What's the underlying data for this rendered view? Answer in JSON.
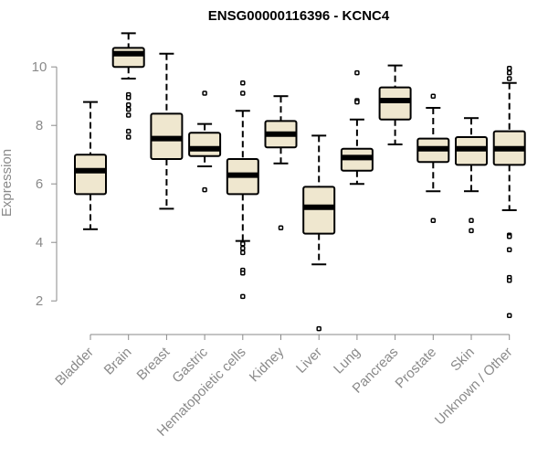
{
  "chart_data": {
    "type": "boxplot",
    "title": "ENSG00000116396 - KCNC4",
    "ylabel": "Expression",
    "xlabel": "",
    "ylim": [
      0.85,
      11.35
    ],
    "yticks": [
      2,
      4,
      6,
      8,
      10
    ],
    "colors": {
      "box_fill": "#efe7cf",
      "stroke": "#000000",
      "axis_text": "#8a8a8a"
    },
    "categories": [
      "Bladder",
      "Brain",
      "Breast",
      "Gastric",
      "Hematopoietic cells",
      "Kidney",
      "Liver",
      "Lung",
      "Pancreas",
      "Prostate",
      "Skin",
      "Unknown / Other"
    ],
    "series": [
      {
        "whisker_low": 4.45,
        "q1": 5.65,
        "median": 6.45,
        "q3": 7.0,
        "whisker_high": 8.8,
        "outliers": []
      },
      {
        "whisker_low": 9.6,
        "q1": 10.0,
        "median": 10.45,
        "q3": 10.65,
        "whisker_high": 11.15,
        "outliers": [
          9.05,
          8.95,
          8.7,
          8.55,
          8.35,
          7.8,
          7.6
        ]
      },
      {
        "whisker_low": 5.15,
        "q1": 6.85,
        "median": 7.55,
        "q3": 8.4,
        "whisker_high": 10.45,
        "outliers": []
      },
      {
        "whisker_low": 6.6,
        "q1": 6.95,
        "median": 7.2,
        "q3": 7.75,
        "whisker_high": 8.05,
        "outliers": [
          9.1,
          5.8
        ]
      },
      {
        "whisker_low": 4.05,
        "q1": 5.65,
        "median": 6.3,
        "q3": 6.85,
        "whisker_high": 8.5,
        "outliers": [
          9.45,
          9.1,
          3.95,
          3.8,
          3.65,
          3.05,
          2.95,
          2.15
        ]
      },
      {
        "whisker_low": 6.7,
        "q1": 7.25,
        "median": 7.7,
        "q3": 8.15,
        "whisker_high": 9.0,
        "outliers": [
          4.5
        ]
      },
      {
        "whisker_low": 3.25,
        "q1": 4.3,
        "median": 5.2,
        "q3": 5.9,
        "whisker_high": 7.65,
        "outliers": [
          1.05
        ]
      },
      {
        "whisker_low": 6.0,
        "q1": 6.45,
        "median": 6.9,
        "q3": 7.2,
        "whisker_high": 8.2,
        "outliers": [
          9.8,
          8.85,
          8.8
        ]
      },
      {
        "whisker_low": 7.35,
        "q1": 8.2,
        "median": 8.85,
        "q3": 9.3,
        "whisker_high": 10.05,
        "outliers": []
      },
      {
        "whisker_low": 5.75,
        "q1": 6.75,
        "median": 7.2,
        "q3": 7.55,
        "whisker_high": 8.6,
        "outliers": [
          9.0,
          4.75
        ]
      },
      {
        "whisker_low": 5.75,
        "q1": 6.65,
        "median": 7.2,
        "q3": 7.6,
        "whisker_high": 8.25,
        "outliers": [
          4.75,
          4.4
        ]
      },
      {
        "whisker_low": 5.1,
        "q1": 6.65,
        "median": 7.2,
        "q3": 7.8,
        "whisker_high": 9.45,
        "outliers": [
          9.95,
          9.8,
          9.6,
          4.25,
          4.2,
          3.75,
          2.8,
          2.7,
          1.5
        ]
      }
    ]
  }
}
